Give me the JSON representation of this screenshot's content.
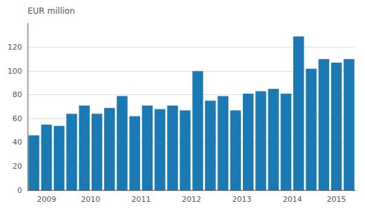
{
  "chart_data": {
    "type": "bar",
    "ylabel": "EUR million",
    "categories": [
      "2009",
      null,
      null,
      "2010",
      null,
      null,
      null,
      "2011",
      null,
      null,
      null,
      "2012",
      null,
      null,
      null,
      "2013",
      null,
      null,
      null,
      "2014",
      null,
      null,
      null,
      "2015",
      null,
      null
    ],
    "values": [
      46,
      55,
      54,
      64,
      71,
      64,
      69,
      79,
      62,
      71,
      68,
      71,
      67,
      100,
      75,
      79,
      67,
      81,
      83,
      85,
      81,
      129,
      102,
      110,
      107,
      110
    ],
    "color": "#1b7ab3",
    "ylim": [
      0,
      140
    ],
    "yticks": [
      0,
      20,
      40,
      60,
      80,
      100,
      120
    ],
    "grid": true
  }
}
